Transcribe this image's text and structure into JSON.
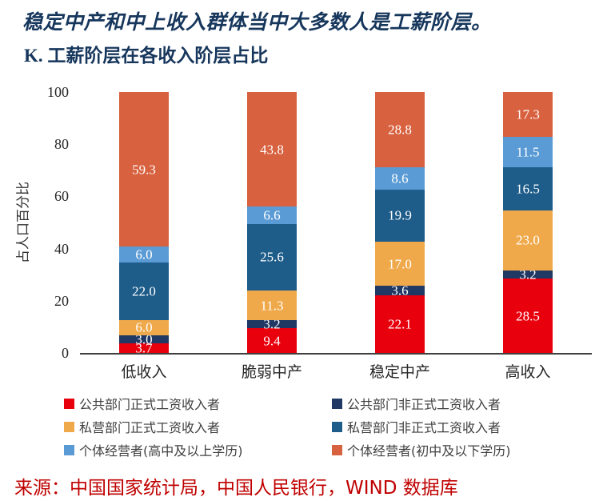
{
  "chart_data": {
    "type": "bar",
    "stacked": true,
    "title": "稳定中产和中上收入群体当中大多数人是工薪阶层。",
    "subtitle": "K.  工薪阶层在各收入阶层占比",
    "ylabel": "占人口百分比",
    "ylim": [
      0,
      100
    ],
    "yticks": [
      0,
      20,
      40,
      60,
      80,
      100
    ],
    "grid": false,
    "legend_position": "bottom",
    "categories": [
      "低收入",
      "脆弱中产",
      "稳定中产",
      "高收入"
    ],
    "series": [
      {
        "name": "公共部门正式工资收入者",
        "color": "#e8000d",
        "values": [
          3.7,
          9.4,
          22.1,
          28.5
        ]
      },
      {
        "name": "公共部门非正式工资收入者",
        "color": "#1f3864",
        "values": [
          3.0,
          3.2,
          3.6,
          3.2
        ]
      },
      {
        "name": "私营部门正式工资收入者",
        "color": "#efa94a",
        "values": [
          6.0,
          11.3,
          17.0,
          23.0
        ]
      },
      {
        "name": "私营部门非正式工资收入者",
        "color": "#1e5c8a",
        "values": [
          22.0,
          25.6,
          19.9,
          16.5
        ]
      },
      {
        "name": "个体经营者(高中及以上学历)",
        "color": "#5b9bd5",
        "values": [
          6.0,
          6.6,
          8.6,
          11.5
        ]
      },
      {
        "name": "个体经营者(初中及以下学历)",
        "color": "#d8613f",
        "values": [
          59.3,
          43.8,
          28.8,
          17.3
        ]
      }
    ],
    "source": "来源：中国国家统计局，中国人民银行，WIND 数据库"
  }
}
